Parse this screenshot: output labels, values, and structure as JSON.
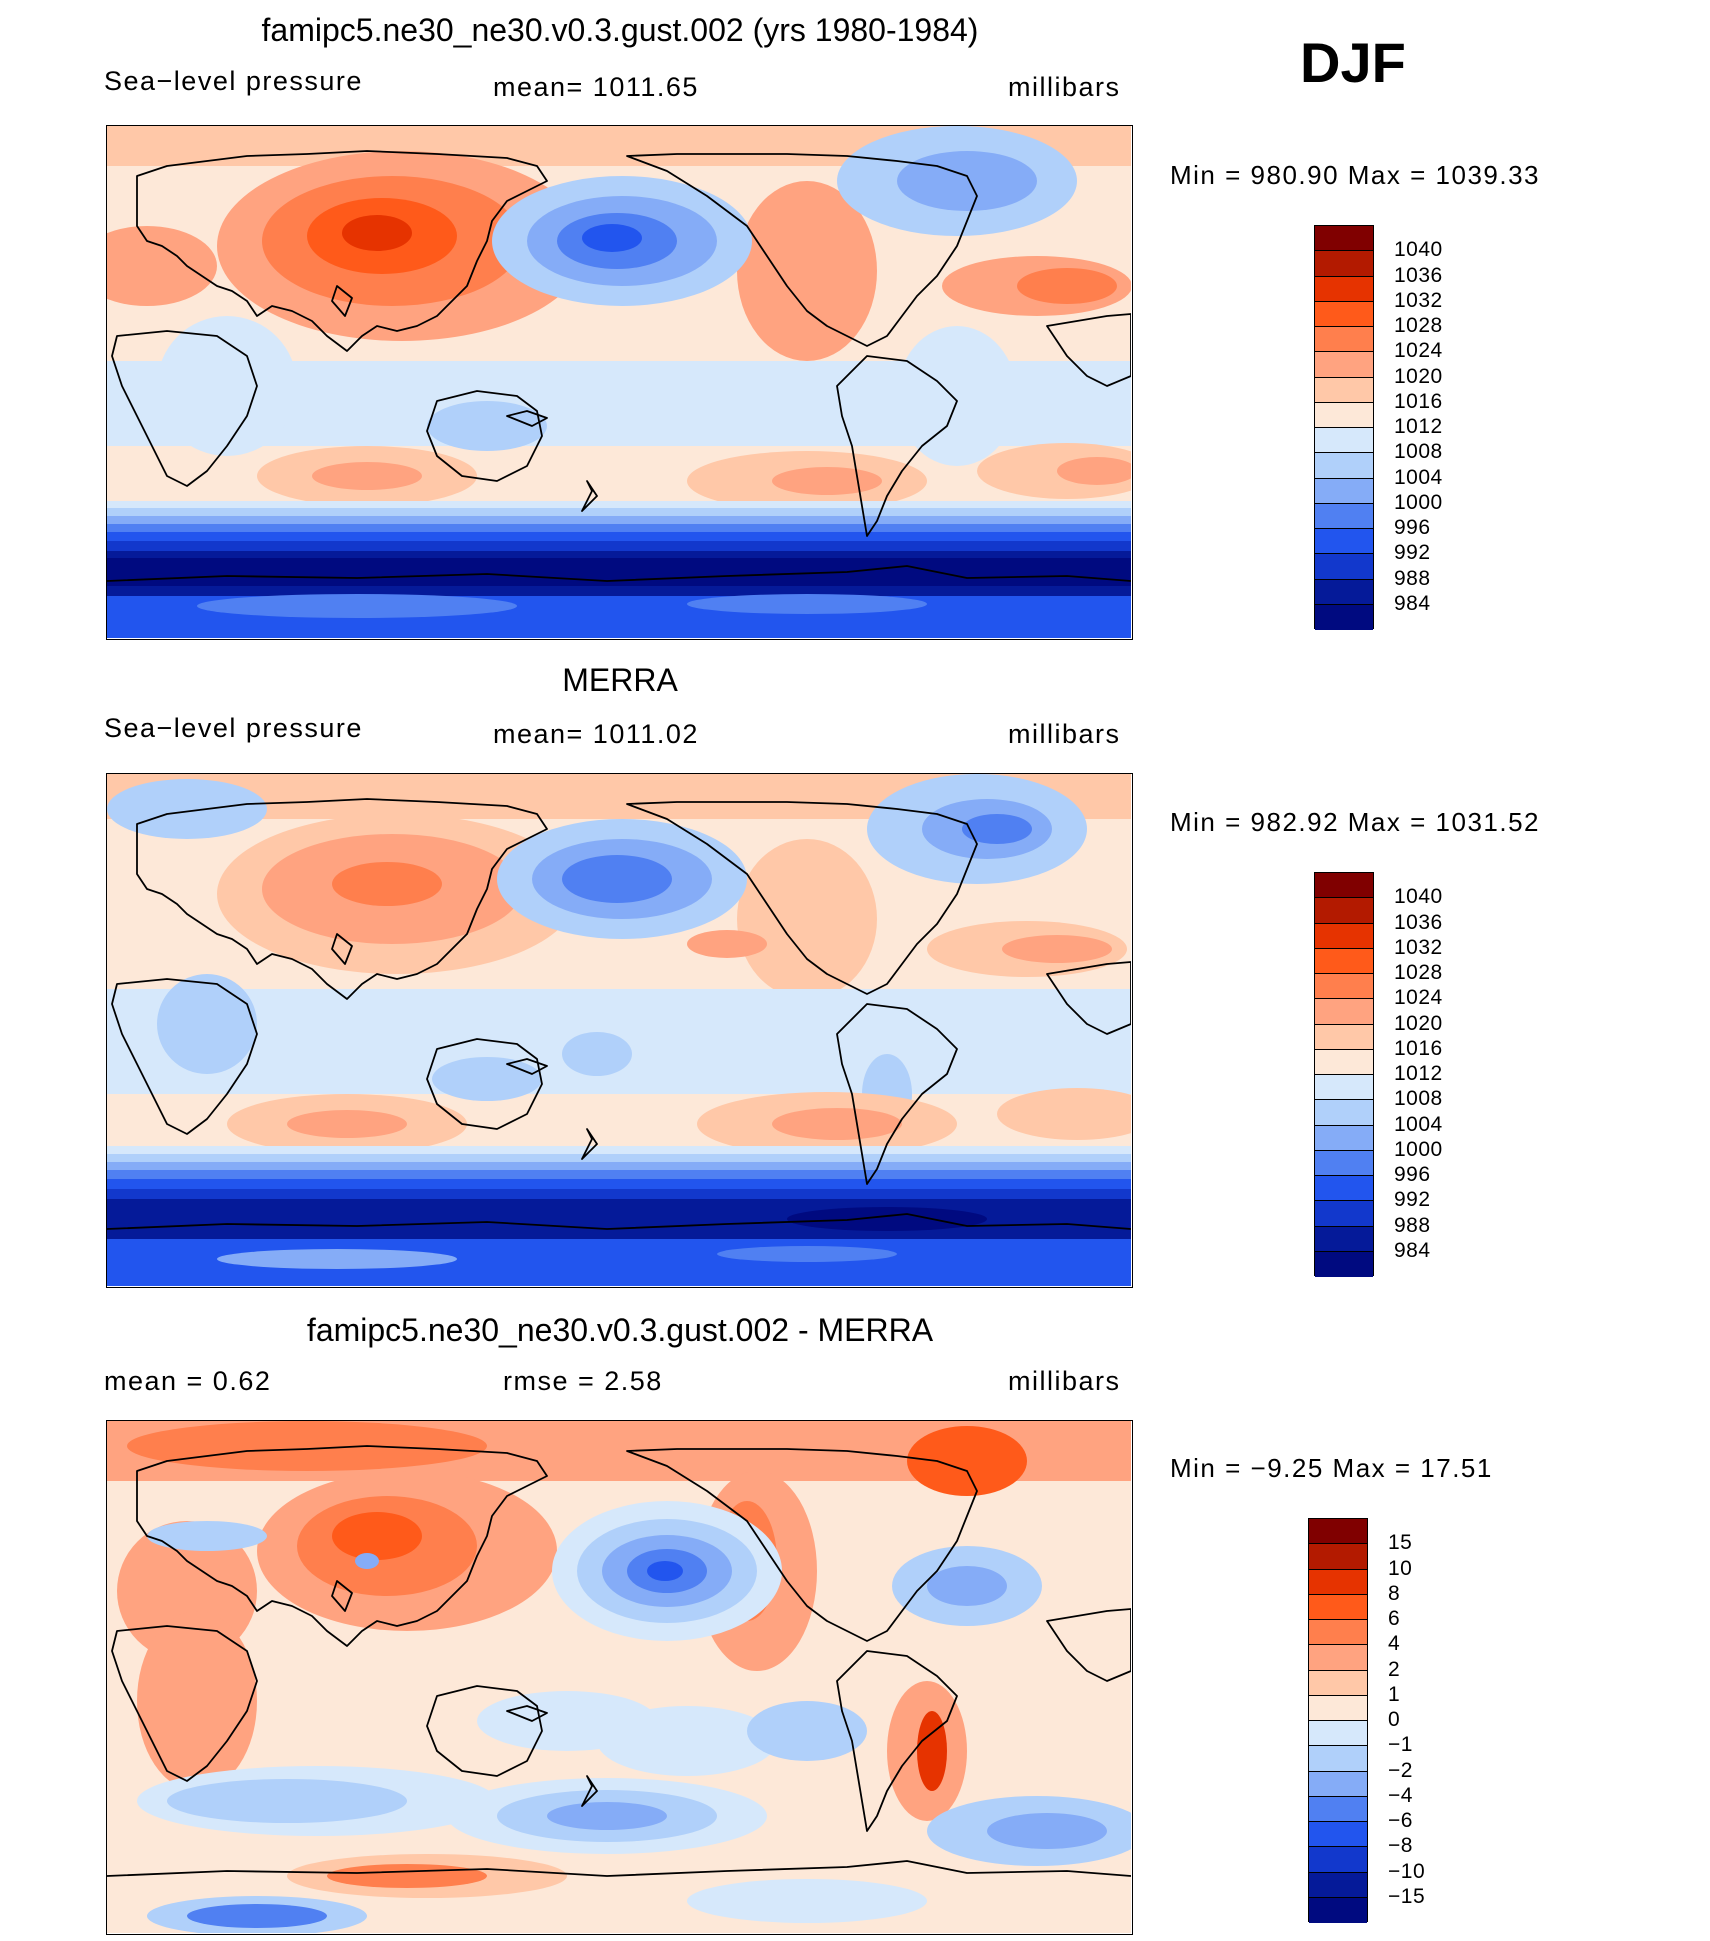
{
  "season": "DJF",
  "panels": [
    {
      "id": "model",
      "title": "famipc5.ne30_ne30.v0.3.gust.002 (yrs 1980-1984)",
      "left_label": "Sea−level pressure",
      "center_label": "mean=  1011.65",
      "right_label": "millibars",
      "minmax": "Min  =  980.90  Max  =  1039.33",
      "colorbar": {
        "labels": [
          "1040",
          "1036",
          "1032",
          "1028",
          "1024",
          "1020",
          "1016",
          "1012",
          "1008",
          "1004",
          "1000",
          "996",
          "992",
          "988",
          "984"
        ],
        "colors": [
          "#800000",
          "#b31a00",
          "#e63300",
          "#ff5a1a",
          "#ff7f4d",
          "#ffa380",
          "#ffc8a8",
          "#fde8d8",
          "#d6e8fb",
          "#b0d0fa",
          "#85acf7",
          "#5080f2",
          "#2255ee",
          "#1238cc",
          "#051a99",
          "#000a80"
        ]
      }
    },
    {
      "id": "obs",
      "title": "MERRA",
      "left_label": "Sea−level pressure",
      "center_label": "mean=  1011.02",
      "right_label": "millibars",
      "minmax": "Min  =  982.92  Max  =  1031.52",
      "colorbar": {
        "labels": [
          "1040",
          "1036",
          "1032",
          "1028",
          "1024",
          "1020",
          "1016",
          "1012",
          "1008",
          "1004",
          "1000",
          "996",
          "992",
          "988",
          "984"
        ],
        "colors": [
          "#800000",
          "#b31a00",
          "#e63300",
          "#ff5a1a",
          "#ff7f4d",
          "#ffa380",
          "#ffc8a8",
          "#fde8d8",
          "#d6e8fb",
          "#b0d0fa",
          "#85acf7",
          "#5080f2",
          "#2255ee",
          "#1238cc",
          "#051a99",
          "#000a80"
        ]
      }
    },
    {
      "id": "diff",
      "title": "famipc5.ne30_ne30.v0.3.gust.002 - MERRA",
      "left_label": "mean  =      0.62",
      "center_label": "rmse  =      2.58",
      "right_label": "millibars",
      "minmax": "Min  =    −9.25  Max  =     17.51",
      "colorbar": {
        "labels": [
          "15",
          "10",
          "8",
          "6",
          "4",
          "2",
          "1",
          "0",
          "−1",
          "−2",
          "−4",
          "−6",
          "−8",
          "−10",
          "−15"
        ],
        "colors": [
          "#800000",
          "#b31a00",
          "#e63300",
          "#ff5a1a",
          "#ff7f4d",
          "#ffa380",
          "#ffc8a8",
          "#fde8d8",
          "#d6e8fb",
          "#b0d0fa",
          "#85acf7",
          "#5080f2",
          "#2255ee",
          "#1238cc",
          "#051a99",
          "#000a80"
        ]
      }
    }
  ]
}
